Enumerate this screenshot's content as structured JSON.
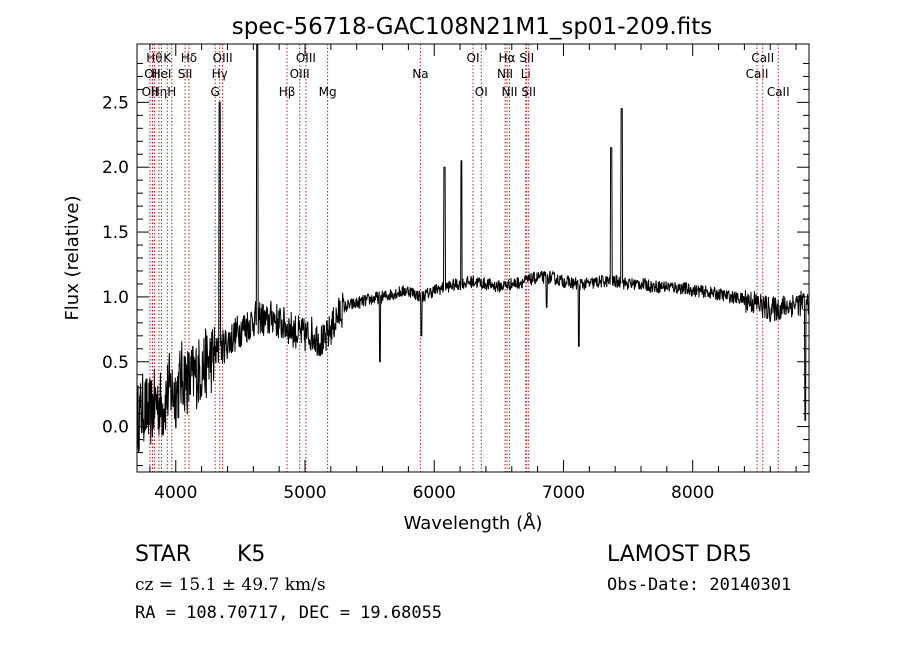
{
  "chart_data": {
    "type": "line",
    "title": "spec-56718-GAC108N21M1_sp01-209.fits",
    "xlabel": "Wavelength (Å)",
    "ylabel": "Flux (relative)",
    "xlim": [
      3700,
      8900
    ],
    "ylim": [
      -0.35,
      2.95
    ],
    "x_ticks": [
      4000,
      5000,
      6000,
      7000,
      8000
    ],
    "y_ticks": [
      0.0,
      0.5,
      1.0,
      1.5,
      2.0,
      2.5
    ],
    "x_tick_labels": [
      "4000",
      "5000",
      "6000",
      "7000",
      "8000"
    ],
    "y_tick_labels": [
      "0.0",
      "0.5",
      "1.0",
      "1.5",
      "2.0",
      "2.5"
    ],
    "grid": false,
    "line_color": "#000000",
    "marker_line_color": "#b22222",
    "spectrum": {
      "x": [
        3700,
        3750,
        3800,
        3850,
        3900,
        3950,
        4000,
        4050,
        4100,
        4150,
        4200,
        4250,
        4300,
        4350,
        4400,
        4450,
        4500,
        4550,
        4600,
        4650,
        4700,
        4750,
        4800,
        4850,
        4900,
        4950,
        5000,
        5050,
        5100,
        5150,
        5200,
        5250,
        5300,
        5400,
        5500,
        5600,
        5700,
        5800,
        5900,
        6000,
        6100,
        6200,
        6300,
        6400,
        6500,
        6600,
        6700,
        6800,
        6900,
        7000,
        7100,
        7200,
        7300,
        7400,
        7500,
        7600,
        7700,
        7800,
        7900,
        8000,
        8100,
        8200,
        8300,
        8400,
        8500,
        8600,
        8700,
        8800,
        8900
      ],
      "y": [
        0.05,
        0.15,
        0.1,
        0.2,
        0.15,
        0.3,
        0.25,
        0.4,
        0.35,
        0.4,
        0.45,
        0.5,
        0.55,
        0.6,
        0.65,
        0.7,
        0.75,
        0.78,
        0.82,
        0.85,
        0.8,
        0.85,
        0.8,
        0.78,
        0.75,
        0.72,
        0.7,
        0.72,
        0.68,
        0.65,
        0.75,
        0.85,
        0.92,
        0.95,
        0.98,
        1.0,
        1.03,
        1.05,
        1.0,
        1.05,
        1.08,
        1.1,
        1.12,
        1.1,
        1.08,
        1.1,
        1.12,
        1.15,
        1.15,
        1.12,
        1.1,
        1.1,
        1.12,
        1.12,
        1.1,
        1.1,
        1.08,
        1.08,
        1.07,
        1.05,
        1.04,
        1.02,
        1.0,
        0.98,
        0.95,
        0.9,
        0.92,
        0.95,
        0.95
      ]
    },
    "emission_spikes": [
      {
        "x": 4340,
        "y": 2.5
      },
      {
        "x": 4630,
        "y": 2.95
      },
      {
        "x": 6080,
        "y": 2.0
      },
      {
        "x": 6210,
        "y": 2.05
      },
      {
        "x": 7370,
        "y": 2.15
      },
      {
        "x": 7450,
        "y": 2.45
      }
    ],
    "absorption_dips": [
      {
        "x": 5580,
        "y": 0.5
      },
      {
        "x": 5900,
        "y": 0.7
      },
      {
        "x": 6870,
        "y": 0.92
      },
      {
        "x": 7120,
        "y": 0.62
      },
      {
        "x": 8870,
        "y": 0.05
      }
    ],
    "line_markers": [
      {
        "x": 3820,
        "label": "OII",
        "row": 2
      },
      {
        "x": 3800,
        "label": "OII",
        "row": 3
      },
      {
        "x": 3835,
        "label": "Hθ",
        "row": 1
      },
      {
        "x": 3870,
        "label": "Hη",
        "row": 3
      },
      {
        "x": 3889,
        "label": "HeI",
        "row": 2
      },
      {
        "x": 3934,
        "label": "K",
        "row": 1
      },
      {
        "x": 3969,
        "label": "H",
        "row": 3
      },
      {
        "x": 4072,
        "label": "SII",
        "row": 2
      },
      {
        "x": 4102,
        "label": "Hδ",
        "row": 1
      },
      {
        "x": 4305,
        "label": "G",
        "row": 3
      },
      {
        "x": 4340,
        "label": "Hγ",
        "row": 2
      },
      {
        "x": 4363,
        "label": "OIII",
        "row": 1
      },
      {
        "x": 4861,
        "label": "Hβ",
        "row": 3
      },
      {
        "x": 4959,
        "label": "OIII",
        "row": 2
      },
      {
        "x": 5007,
        "label": "OIII",
        "row": 1
      },
      {
        "x": 5175,
        "label": "Mg",
        "row": 3
      },
      {
        "x": 5893,
        "label": "Na",
        "row": 2
      },
      {
        "x": 6300,
        "label": "OI",
        "row": 1
      },
      {
        "x": 6364,
        "label": "OI",
        "row": 3
      },
      {
        "x": 6548,
        "label": "NII",
        "row": 2
      },
      {
        "x": 6563,
        "label": "Hα",
        "row": 1
      },
      {
        "x": 6583,
        "label": "NII",
        "row": 3
      },
      {
        "x": 6708,
        "label": "Li",
        "row": 2
      },
      {
        "x": 6716,
        "label": "SII",
        "row": 1
      },
      {
        "x": 6731,
        "label": "SII",
        "row": 3
      },
      {
        "x": 8498,
        "label": "CaII",
        "row": 2
      },
      {
        "x": 8542,
        "label": "CaII",
        "row": 1
      },
      {
        "x": 8662,
        "label": "CaII",
        "row": 3
      }
    ]
  },
  "footer": {
    "class_label": "STAR",
    "subclass_label": "K5",
    "cz_text": "cz = 15.1 ± 49.7 km/s",
    "radec_text": "RA = 108.70717, DEC =  19.68055",
    "survey_label": "LAMOST DR5",
    "obs_date_text": "Obs-Date: 20140301"
  }
}
